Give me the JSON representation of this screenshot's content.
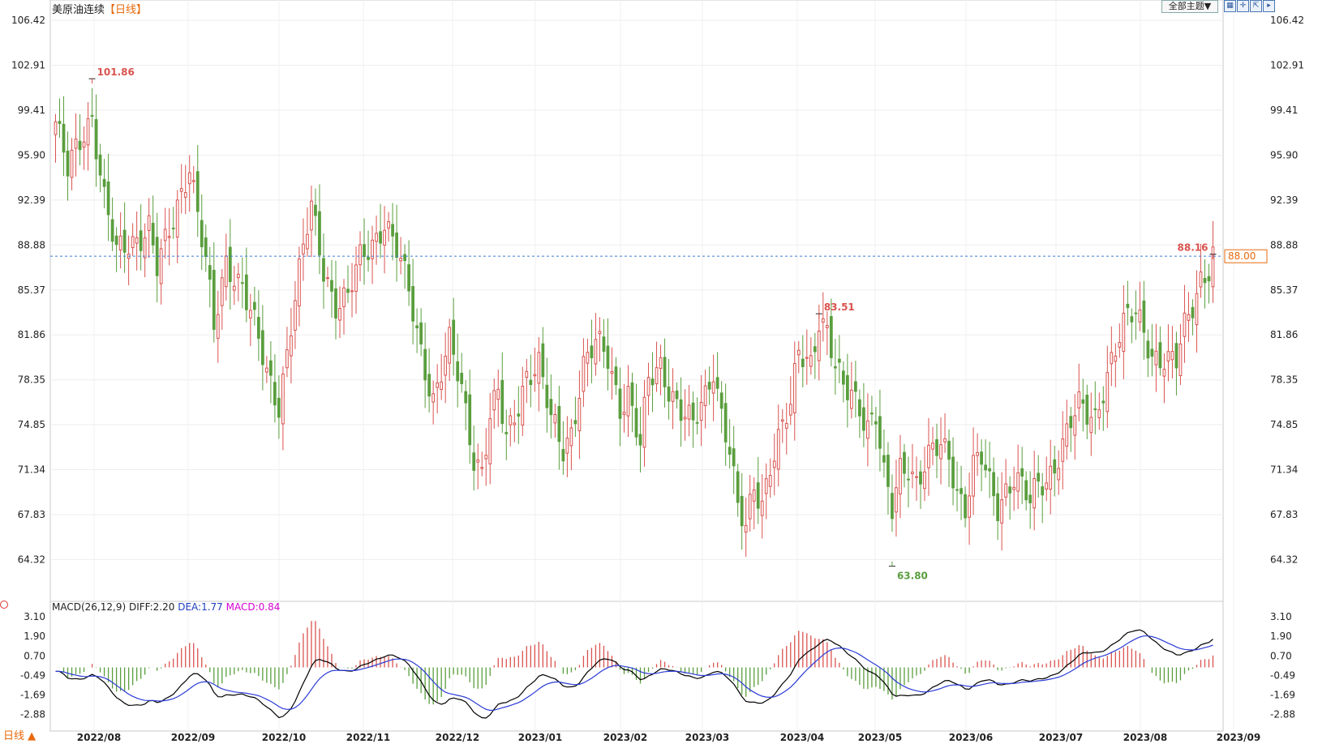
{
  "header": {
    "title": "美原油连续",
    "period": "【日线】",
    "theme_button": "全部主题▼",
    "icon_buttons": [
      "grid-icon",
      "crosshair-icon",
      "expand-icon",
      "play-icon"
    ]
  },
  "macd": {
    "label": "MACD(26,12,9)",
    "diff": "DIFF:2.20",
    "dea": "DEA:1.77",
    "macd": "MACD:0.84",
    "y_ticks": [
      "3.10",
      "1.90",
      "0.70",
      "-0.49",
      "-1.69",
      "-2.88"
    ]
  },
  "period_tab": "日线 ▲",
  "current_price": "88.00",
  "colors": {
    "up": "#d9534f",
    "down": "#5a9e3e",
    "diff": "#000000",
    "dea": "#2b3bd6",
    "price_line": "#3b7ad9"
  },
  "chart_data": {
    "type": "candlestick",
    "title": "美原油连续",
    "y_ticks": [
      "106.42",
      "102.91",
      "99.41",
      "95.90",
      "92.39",
      "88.88",
      "85.37",
      "81.86",
      "78.35",
      "74.85",
      "71.34",
      "67.83",
      "64.32"
    ],
    "ylim": [
      61.5,
      107.5
    ],
    "x_labels": [
      "2022/08",
      "2022/09",
      "2022/10",
      "2022/11",
      "2022/12",
      "2023/01",
      "2023/02",
      "2023/03",
      "2023/04",
      "2023/05",
      "2023/06",
      "2023/07",
      "2023/08",
      "2023/09"
    ],
    "annotations": [
      {
        "label": "101.86",
        "value": 101.86
      },
      {
        "label": "83.51",
        "value": 83.51
      },
      {
        "label": "63.80",
        "value": 63.8
      },
      {
        "label": "88.16",
        "value": 88.16
      }
    ],
    "anchors": [
      [
        0,
        98.5
      ],
      [
        3,
        94.5
      ],
      [
        7,
        97.8
      ],
      [
        9,
        99.2
      ],
      [
        12,
        92.5
      ],
      [
        15,
        88.0
      ],
      [
        19,
        89.2
      ],
      [
        23,
        90.5
      ],
      [
        25,
        87.0
      ],
      [
        28,
        89.5
      ],
      [
        33,
        95.5
      ],
      [
        37,
        87.5
      ],
      [
        39,
        82.0
      ],
      [
        42,
        87.5
      ],
      [
        46,
        86.0
      ],
      [
        49,
        82.5
      ],
      [
        52,
        78.5
      ],
      [
        55,
        76.5
      ],
      [
        58,
        83.0
      ],
      [
        61,
        88.5
      ],
      [
        63,
        91.5
      ],
      [
        66,
        87.0
      ],
      [
        69,
        84.5
      ],
      [
        72,
        84.8
      ],
      [
        75,
        87.5
      ],
      [
        78,
        89.0
      ],
      [
        81,
        91.0
      ],
      [
        84,
        88.5
      ],
      [
        87,
        85.0
      ],
      [
        89,
        82.0
      ],
      [
        91,
        79.5
      ],
      [
        93,
        77.0
      ],
      [
        95,
        79.0
      ],
      [
        97,
        81.0
      ],
      [
        100,
        77.5
      ],
      [
        103,
        72.5
      ],
      [
        105,
        71.5
      ],
      [
        107,
        75.5
      ],
      [
        109,
        77.0
      ],
      [
        111,
        73.5
      ],
      [
        113,
        75.5
      ],
      [
        116,
        79.0
      ],
      [
        119,
        79.5
      ],
      [
        122,
        75.0
      ],
      [
        125,
        73.0
      ],
      [
        127,
        74.5
      ],
      [
        130,
        79.5
      ],
      [
        133,
        81.0
      ],
      [
        136,
        80.0
      ],
      [
        139,
        76.5
      ],
      [
        141,
        77.5
      ],
      [
        144,
        73.0
      ],
      [
        146,
        78.0
      ],
      [
        149,
        79.5
      ],
      [
        151,
        78.0
      ],
      [
        154,
        76.0
      ],
      [
        157,
        74.5
      ],
      [
        160,
        77.0
      ],
      [
        162,
        79.5
      ],
      [
        164,
        76.0
      ],
      [
        166,
        73.0
      ],
      [
        168,
        68.0
      ],
      [
        170,
        66.5
      ],
      [
        172,
        70.0
      ],
      [
        174,
        69.0
      ],
      [
        176,
        72.0
      ],
      [
        179,
        74.5
      ],
      [
        181,
        76.0
      ],
      [
        183,
        80.5
      ],
      [
        186,
        80.0
      ],
      [
        188,
        83.3
      ],
      [
        190,
        82.0
      ],
      [
        192,
        79.0
      ],
      [
        194,
        77.5
      ],
      [
        196,
        77.5
      ],
      [
        198,
        76.5
      ],
      [
        200,
        75.0
      ],
      [
        202,
        75.5
      ],
      [
        204,
        70.5
      ],
      [
        206,
        68.0
      ],
      [
        208,
        71.5
      ],
      [
        210,
        72.0
      ],
      [
        212,
        70.5
      ],
      [
        214,
        71.5
      ],
      [
        216,
        72.5
      ],
      [
        218,
        73.0
      ],
      [
        220,
        72.5
      ],
      [
        222,
        70.0
      ],
      [
        224,
        68.5
      ],
      [
        226,
        71.5
      ],
      [
        228,
        72.0
      ],
      [
        230,
        70.0
      ],
      [
        232,
        68.5
      ],
      [
        234,
        70.0
      ],
      [
        236,
        71.0
      ],
      [
        238,
        70.0
      ],
      [
        240,
        68.5
      ],
      [
        242,
        70.0
      ],
      [
        244,
        70.5
      ],
      [
        246,
        72.0
      ],
      [
        248,
        73.5
      ],
      [
        250,
        75.0
      ],
      [
        252,
        76.0
      ],
      [
        254,
        75.5
      ],
      [
        256,
        75.5
      ],
      [
        258,
        78.0
      ],
      [
        260,
        80.0
      ],
      [
        262,
        81.5
      ],
      [
        264,
        83.0
      ],
      [
        266,
        83.5
      ],
      [
        268,
        82.5
      ],
      [
        270,
        80.5
      ],
      [
        272,
        80.0
      ],
      [
        274,
        79.5
      ],
      [
        276,
        79.5
      ],
      [
        278,
        82.5
      ],
      [
        280,
        84.5
      ],
      [
        282,
        86.5
      ],
      [
        284,
        87.0
      ],
      [
        285,
        88.0
      ]
    ],
    "macd_series": {
      "diff_range": [
        -3.1,
        2.3
      ],
      "dea_range": [
        -2.9,
        2.1
      ],
      "final": {
        "diff": 2.2,
        "dea": 1.77,
        "macd": 0.84
      }
    }
  }
}
